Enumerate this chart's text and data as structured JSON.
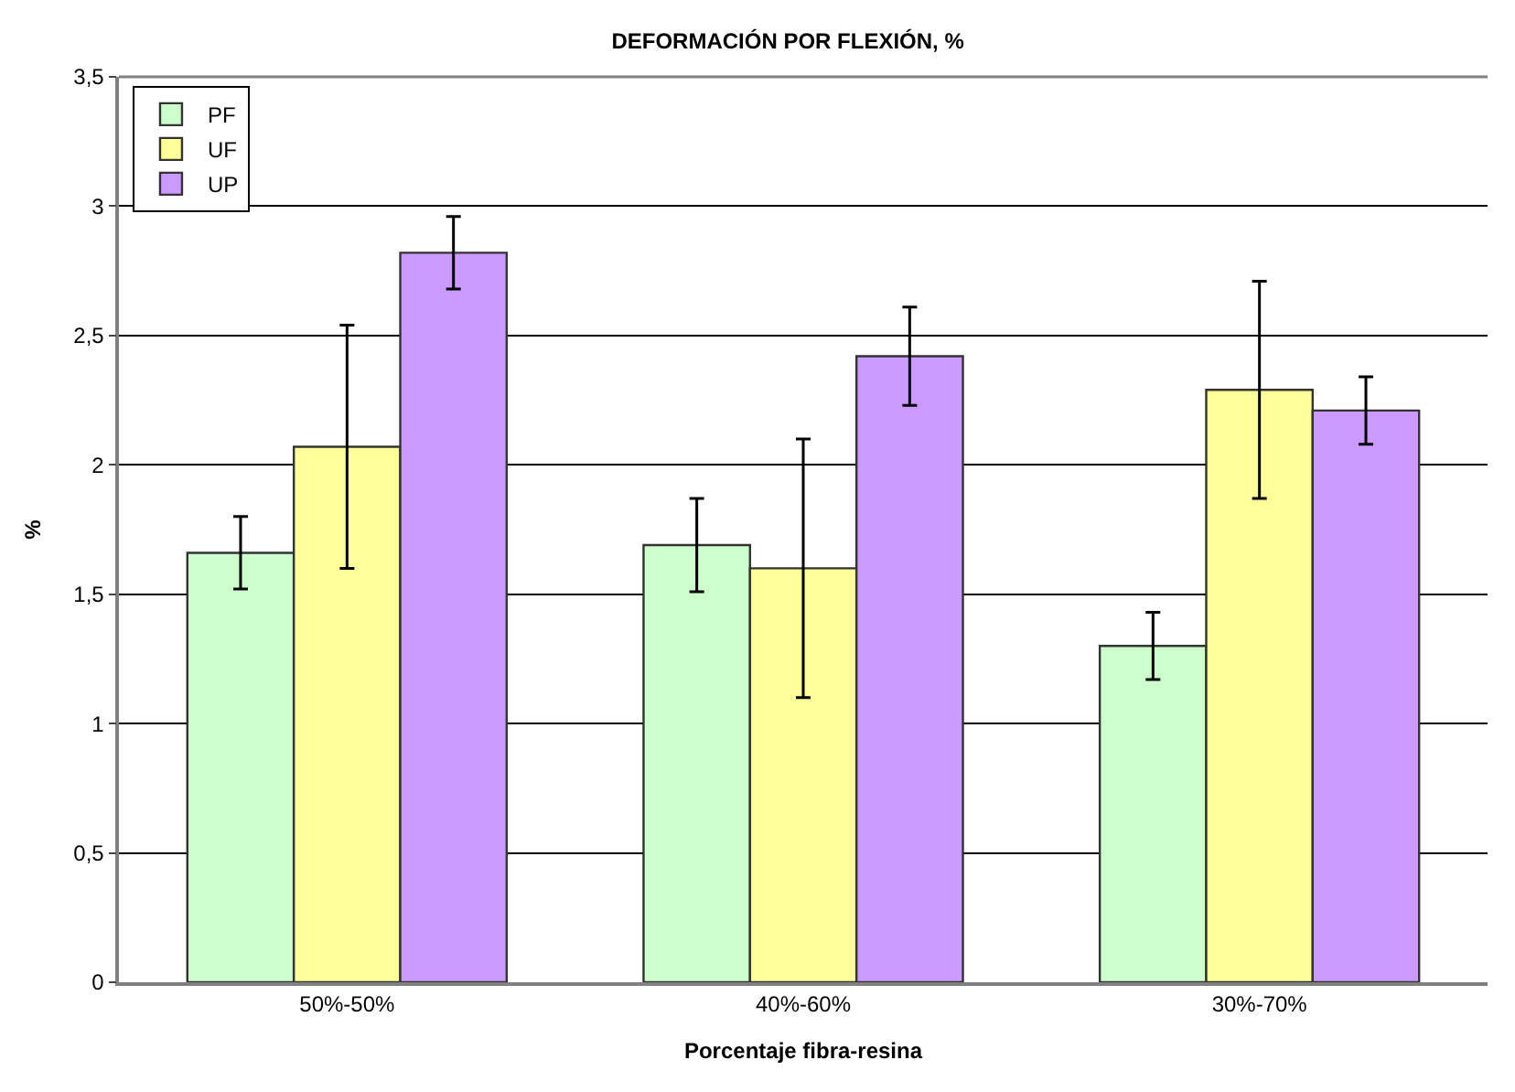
{
  "chart_data": {
    "type": "bar",
    "title": "DEFORMACIÓN POR FLEXIÓN, %",
    "xlabel": "Porcentaje fibra-resina",
    "ylabel": "%",
    "categories": [
      "50%-50%",
      "40%-60%",
      "30%-70%"
    ],
    "series": [
      {
        "name": "PF",
        "color": "#ccffcc",
        "values": [
          1.66,
          1.69,
          1.3
        ],
        "errors": [
          0.14,
          0.18,
          0.13
        ]
      },
      {
        "name": "UF",
        "color": "#ffff99",
        "values": [
          2.07,
          1.6,
          2.29
        ],
        "errors": [
          0.47,
          0.5,
          0.42
        ]
      },
      {
        "name": "UP",
        "color": "#cc99ff",
        "values": [
          2.82,
          2.42,
          2.21
        ],
        "errors": [
          0.14,
          0.19,
          0.13
        ]
      }
    ],
    "ylim": [
      0,
      3.5
    ],
    "yticks": [
      0,
      {
        "value": 0.5,
        "label": "0,5"
      },
      1,
      {
        "value": 1.5,
        "label": "1,5"
      },
      2,
      {
        "value": 2.5,
        "label": "2,5"
      },
      3,
      {
        "value": 3.5,
        "label": "3,5"
      }
    ],
    "grid": "y",
    "legend": "top left"
  }
}
